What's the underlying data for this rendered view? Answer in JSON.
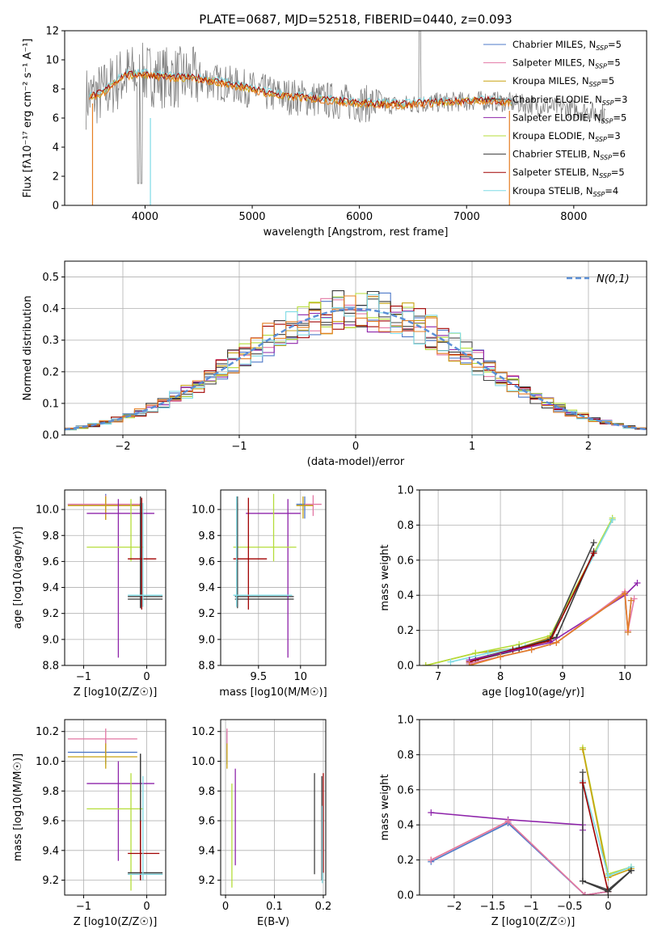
{
  "figure": {
    "title": "PLATE=0687, MJD=52518, FIBERID=0440, z=0.093"
  },
  "colors": {
    "palette": [
      "#4e79c8",
      "#e377a4",
      "#c8a210",
      "#444444",
      "#8e24aa",
      "#b5dd3a",
      "#3a3a3a",
      "#a00000",
      "#7fdbe5"
    ],
    "data_gray": "#808080",
    "gauss": "#5b8fd6",
    "orange": "#e67e22",
    "green": "#7fb800"
  },
  "chart_data": [
    {
      "id": "spectrum",
      "type": "line",
      "title": "PLATE=0687, MJD=52518, FIBERID=0440, z=0.093",
      "xlabel": "wavelength [Angstrom, rest frame]",
      "ylabel": "Flux [fλ10⁻¹⁷ erg cm⁻² s⁻¹ A⁻¹]",
      "xlim": [
        3250,
        8680
      ],
      "ylim": [
        0,
        12
      ],
      "xticks": [
        4000,
        5000,
        6000,
        7000,
        8000
      ],
      "yticks": [
        0,
        2,
        4,
        6,
        8,
        10,
        12
      ],
      "grid": false,
      "legend_position": "upper right",
      "series": [
        {
          "name": "Chabrier MILES, N_SSP=5"
        },
        {
          "name": "Salpeter MILES, N_SSP=5"
        },
        {
          "name": "Kroupa MILES, N_SSP=5"
        },
        {
          "name": "Chabrier ELODIE, N_SSP=3"
        },
        {
          "name": "Salpeter ELODIE, N_SSP=5"
        },
        {
          "name": "Kroupa ELODIE, N_SSP=3"
        },
        {
          "name": "Chabrier STELIB, N_SSP=6"
        },
        {
          "name": "Salpeter STELIB, N_SSP=5"
        },
        {
          "name": "Kroupa STELIB, N_SSP=4"
        }
      ],
      "continuum": {
        "x": [
          3450,
          3600,
          3800,
          4000,
          4200,
          4500,
          4800,
          5200,
          5600,
          6000,
          6400,
          6800,
          7200,
          7600,
          8000,
          8300
        ],
        "y": [
          7.4,
          7.7,
          8.9,
          9.0,
          8.8,
          8.7,
          8.3,
          7.6,
          7.3,
          7.0,
          6.9,
          7.1,
          7.2,
          6.9,
          6.6,
          6.3
        ]
      }
    },
    {
      "id": "residuals",
      "type": "line",
      "xlabel": "(data-model)/error",
      "ylabel": "Normed distribution",
      "xlim": [
        -2.5,
        2.5
      ],
      "ylim": [
        0,
        0.55
      ],
      "xticks": [
        -2,
        -1,
        0,
        1,
        2
      ],
      "yticks": [
        0.0,
        0.1,
        0.2,
        0.3,
        0.4,
        0.5
      ],
      "grid": true,
      "legend": [
        "N(0,1)"
      ],
      "legend_position": "upper right"
    },
    {
      "id": "age_vs_Z",
      "type": "scatter",
      "xlabel": "Z [log10(Z/Z☉)]",
      "ylabel": "age  [log10(age/yr)]",
      "xlim": [
        -1.3,
        0.3
      ],
      "ylim": [
        8.8,
        10.15
      ],
      "xticks": [
        -1,
        0
      ],
      "yticks": [
        8.8,
        9.0,
        9.2,
        9.4,
        9.6,
        9.8,
        10.0
      ],
      "grid": true,
      "points": [
        {
          "x": -0.65,
          "y": 10.04,
          "xlo": -1.25,
          "xhi": -0.1,
          "ylo": 9.93,
          "yhi": 10.12,
          "c": 0
        },
        {
          "x": -0.65,
          "y": 10.04,
          "xlo": -1.25,
          "xhi": -0.1,
          "ylo": 9.92,
          "yhi": 10.11,
          "c": 1
        },
        {
          "x": -0.65,
          "y": 10.03,
          "xlo": -1.25,
          "xhi": -0.1,
          "ylo": 9.92,
          "yhi": 10.1,
          "c": 2
        },
        {
          "x": -0.1,
          "y": 9.33,
          "xlo": -0.3,
          "xhi": 0.25,
          "ylo": 9.24,
          "yhi": 10.05,
          "c": 3
        },
        {
          "x": -0.45,
          "y": 9.97,
          "xlo": -0.95,
          "xhi": 0.12,
          "ylo": 8.86,
          "yhi": 10.08,
          "c": 4
        },
        {
          "x": -0.25,
          "y": 9.71,
          "xlo": -0.95,
          "xhi": -0.05,
          "ylo": 9.6,
          "yhi": 10.08,
          "c": 5
        },
        {
          "x": -0.1,
          "y": 9.31,
          "xlo": -0.3,
          "xhi": 0.25,
          "ylo": 9.25,
          "yhi": 10.1,
          "c": 6
        },
        {
          "x": -0.08,
          "y": 9.62,
          "xlo": -0.3,
          "xhi": 0.15,
          "ylo": 9.23,
          "yhi": 10.09,
          "c": 7
        },
        {
          "x": -0.06,
          "y": 9.34,
          "xlo": -0.3,
          "xhi": 0.25,
          "ylo": 9.25,
          "yhi": 10.05,
          "c": 8
        }
      ]
    },
    {
      "id": "age_vs_mass",
      "type": "scatter",
      "xlabel": "mass [log10(M/M☉)]",
      "ylabel": "",
      "xlim": [
        9.05,
        10.3
      ],
      "ylim": [
        8.8,
        10.15
      ],
      "xticks": [
        9.5,
        10.0
      ],
      "yticks": [
        8.8,
        9.0,
        9.2,
        9.4,
        9.6,
        9.8,
        10.0
      ],
      "grid": true,
      "points": [
        {
          "x": 10.05,
          "y": 10.04,
          "xlo": 9.95,
          "xhi": 10.15,
          "ylo": 9.93,
          "yhi": 10.1,
          "c": 0
        },
        {
          "x": 10.15,
          "y": 10.04,
          "xlo": 10.05,
          "xhi": 10.25,
          "ylo": 9.95,
          "yhi": 10.11,
          "c": 1
        },
        {
          "x": 10.03,
          "y": 10.03,
          "xlo": 9.95,
          "xhi": 10.15,
          "ylo": 9.93,
          "yhi": 10.1,
          "c": 2
        },
        {
          "x": 9.25,
          "y": 9.33,
          "xlo": 9.22,
          "xhi": 9.92,
          "ylo": 9.24,
          "yhi": 10.05,
          "c": 3
        },
        {
          "x": 9.85,
          "y": 9.97,
          "xlo": 9.35,
          "xhi": 10.0,
          "ylo": 8.86,
          "yhi": 10.08,
          "c": 4
        },
        {
          "x": 9.68,
          "y": 9.71,
          "xlo": 9.2,
          "xhi": 9.95,
          "ylo": 9.6,
          "yhi": 10.12,
          "c": 5
        },
        {
          "x": 9.25,
          "y": 9.31,
          "xlo": 9.22,
          "xhi": 9.92,
          "ylo": 9.25,
          "yhi": 10.1,
          "c": 6
        },
        {
          "x": 9.38,
          "y": 9.62,
          "xlo": 9.2,
          "xhi": 9.6,
          "ylo": 9.23,
          "yhi": 10.09,
          "c": 7
        },
        {
          "x": 9.24,
          "y": 9.34,
          "xlo": 9.2,
          "xhi": 9.9,
          "ylo": 9.25,
          "yhi": 10.1,
          "c": 8
        }
      ]
    },
    {
      "id": "mass_weight_vs_age",
      "type": "line",
      "xlabel": "age  [log10(age/yr)]",
      "ylabel": "mass weight",
      "xlim": [
        6.7,
        10.35
      ],
      "ylim": [
        0,
        1.0
      ],
      "xticks": [
        7,
        8,
        9,
        10
      ],
      "yticks": [
        0.0,
        0.2,
        0.4,
        0.6,
        0.8,
        1.0
      ],
      "grid": true,
      "series": [
        {
          "c": 2,
          "x": [
            6.8,
            7.6,
            8.3,
            8.8,
            9.8
          ],
          "y": [
            0.0,
            0.07,
            0.1,
            0.16,
            0.83
          ]
        },
        {
          "c": 5,
          "x": [
            6.8,
            7.6,
            8.3,
            8.8,
            9.8
          ],
          "y": [
            0.0,
            0.07,
            0.12,
            0.17,
            0.84
          ]
        },
        {
          "c": 8,
          "x": [
            7.2,
            7.8,
            8.4,
            8.8,
            9.8
          ],
          "y": [
            0.02,
            0.07,
            0.11,
            0.15,
            0.83
          ]
        },
        {
          "c": 3,
          "x": [
            7.5,
            8.3,
            8.8,
            9.5
          ],
          "y": [
            0.03,
            0.1,
            0.15,
            0.7
          ]
        },
        {
          "c": 6,
          "x": [
            7.6,
            8.3,
            8.9,
            9.5
          ],
          "y": [
            0.03,
            0.09,
            0.16,
            0.65
          ]
        },
        {
          "c": 7,
          "x": [
            7.5,
            8.2,
            8.8,
            9.5
          ],
          "y": [
            0.02,
            0.09,
            0.14,
            0.64
          ]
        },
        {
          "c": 4,
          "x": [
            7.5,
            8.8,
            10.0,
            10.2
          ],
          "y": [
            0.03,
            0.13,
            0.4,
            0.47
          ]
        },
        {
          "c": 0,
          "x": [
            7.5,
            8.0,
            8.5,
            8.9,
            10.0,
            10.05,
            10.1
          ],
          "y": [
            0.01,
            0.05,
            0.09,
            0.13,
            0.41,
            0.19,
            0.37
          ]
        },
        {
          "c": 1,
          "x": [
            7.5,
            8.0,
            8.5,
            8.9,
            10.0,
            10.05,
            10.15
          ],
          "y": [
            0.01,
            0.05,
            0.09,
            0.13,
            0.42,
            0.2,
            0.38
          ]
        },
        {
          "c": 9,
          "x": [
            7.5,
            8.0,
            8.5,
            8.9,
            10.0,
            10.05,
            10.1
          ],
          "y": [
            0.0,
            0.05,
            0.09,
            0.13,
            0.41,
            0.19,
            0.37
          ]
        }
      ]
    },
    {
      "id": "mass_vs_Z",
      "type": "scatter",
      "xlabel": "Z [log10(Z/Z☉)]",
      "ylabel": "mass [log10(M/M☉)]",
      "xlim": [
        -1.3,
        0.3
      ],
      "ylim": [
        9.1,
        10.28
      ],
      "xticks": [
        -1,
        0
      ],
      "yticks": [
        9.2,
        9.4,
        9.6,
        9.8,
        10.0,
        10.2
      ],
      "grid": true,
      "points": [
        {
          "x": -0.65,
          "y": 10.06,
          "xlo": -1.25,
          "xhi": -0.15,
          "ylo": 9.98,
          "yhi": 10.15,
          "c": 0
        },
        {
          "x": -0.65,
          "y": 10.15,
          "xlo": -1.25,
          "xhi": -0.15,
          "ylo": 10.05,
          "yhi": 10.22,
          "c": 1
        },
        {
          "x": -0.65,
          "y": 10.03,
          "xlo": -1.25,
          "xhi": -0.15,
          "ylo": 9.95,
          "yhi": 10.12,
          "c": 2
        },
        {
          "x": -0.1,
          "y": 9.24,
          "xlo": -0.3,
          "xhi": 0.25,
          "ylo": 9.2,
          "yhi": 10.05,
          "c": 3
        },
        {
          "x": -0.45,
          "y": 9.85,
          "xlo": -0.95,
          "xhi": 0.12,
          "ylo": 9.33,
          "yhi": 10.0,
          "c": 4
        },
        {
          "x": -0.25,
          "y": 9.68,
          "xlo": -0.95,
          "xhi": -0.05,
          "ylo": 9.13,
          "yhi": 9.92,
          "c": 5
        },
        {
          "x": -0.1,
          "y": 9.25,
          "xlo": -0.3,
          "xhi": 0.25,
          "ylo": 9.2,
          "yhi": 10.05,
          "c": 6
        },
        {
          "x": -0.1,
          "y": 9.38,
          "xlo": -0.3,
          "xhi": 0.2,
          "ylo": 9.2,
          "yhi": 9.6,
          "c": 7
        },
        {
          "x": -0.06,
          "y": 9.24,
          "xlo": -0.3,
          "xhi": 0.25,
          "ylo": 9.2,
          "yhi": 9.9,
          "c": 8
        }
      ]
    },
    {
      "id": "mass_vs_ebv",
      "type": "scatter",
      "xlabel": "E(B-V)",
      "ylabel": "",
      "xlim": [
        -0.01,
        0.205
      ],
      "ylim": [
        9.1,
        10.28
      ],
      "xticks": [
        0.0,
        0.1,
        0.2
      ],
      "yticks": [
        9.2,
        9.4,
        9.6,
        9.8,
        10.0,
        10.2
      ],
      "grid": true,
      "points": [
        {
          "x": 0.003,
          "y": 10.06,
          "ylo": 9.98,
          "yhi": 10.2,
          "c": 0
        },
        {
          "x": 0.003,
          "y": 10.15,
          "ylo": 10.05,
          "yhi": 10.22,
          "c": 1
        },
        {
          "x": 0.003,
          "y": 10.03,
          "ylo": 9.95,
          "yhi": 10.12,
          "c": 2
        },
        {
          "x": 0.182,
          "y": 9.5,
          "ylo": 9.24,
          "yhi": 9.92,
          "c": 3
        },
        {
          "x": 0.02,
          "y": 9.6,
          "ylo": 9.3,
          "yhi": 9.95,
          "c": 4
        },
        {
          "x": 0.013,
          "y": 9.5,
          "ylo": 9.15,
          "yhi": 9.85,
          "c": 5
        },
        {
          "x": 0.197,
          "y": 9.5,
          "ylo": 9.2,
          "yhi": 9.9,
          "c": 6
        },
        {
          "x": 0.2,
          "y": 9.6,
          "ylo": 9.25,
          "yhi": 9.92,
          "c": 7
        },
        {
          "x": 0.198,
          "y": 9.4,
          "ylo": 9.18,
          "yhi": 9.7,
          "c": 8
        }
      ]
    },
    {
      "id": "mass_weight_vs_Z",
      "type": "line",
      "xlabel": "Z [log10(Z/Z☉)]",
      "ylabel": "mass weight",
      "xlim": [
        -2.45,
        0.5
      ],
      "ylim": [
        0,
        1.0
      ],
      "xticks": [
        -2.0,
        -1.5,
        -1.0,
        -0.5,
        0.0
      ],
      "yticks": [
        0.0,
        0.2,
        0.4,
        0.6,
        0.8,
        1.0
      ],
      "grid": true,
      "series": [
        {
          "c": 4,
          "x": [
            -2.3,
            -1.3,
            -0.33,
            -0.33
          ],
          "y": [
            0.47,
            0.43,
            0.4,
            0.37
          ]
        },
        {
          "c": 9,
          "x": [
            -2.3,
            -1.3,
            -0.3,
            -0.3,
            0.0
          ],
          "y": [
            0.2,
            0.42,
            0.0,
            0.0,
            0.02
          ]
        },
        {
          "c": 0,
          "x": [
            -2.3,
            -1.3,
            -0.3,
            0.0
          ],
          "y": [
            0.19,
            0.41,
            0.0,
            0.02
          ]
        },
        {
          "c": 1,
          "x": [
            -2.3,
            -1.3,
            -0.3,
            0.0
          ],
          "y": [
            0.2,
            0.42,
            0.0,
            0.02
          ]
        },
        {
          "c": 5,
          "x": [
            -0.33,
            0.0,
            0.3
          ],
          "y": [
            0.84,
            0.12,
            0.16
          ]
        },
        {
          "c": 2,
          "x": [
            -0.33,
            0.0,
            0.3
          ],
          "y": [
            0.83,
            0.1,
            0.15
          ]
        },
        {
          "c": 8,
          "x": [
            -0.33,
            0.0,
            0.3
          ],
          "y": [
            0.65,
            0.11,
            0.16
          ]
        },
        {
          "c": 3,
          "x": [
            -0.33,
            -0.33,
            0.0,
            0.3
          ],
          "y": [
            0.7,
            0.08,
            0.03,
            0.14
          ]
        },
        {
          "c": 7,
          "x": [
            -0.33,
            0.0
          ],
          "y": [
            0.64,
            0.02
          ]
        },
        {
          "c": 6,
          "x": [
            -0.33,
            0.0,
            0.3
          ],
          "y": [
            0.08,
            0.02,
            0.14
          ]
        }
      ]
    }
  ]
}
